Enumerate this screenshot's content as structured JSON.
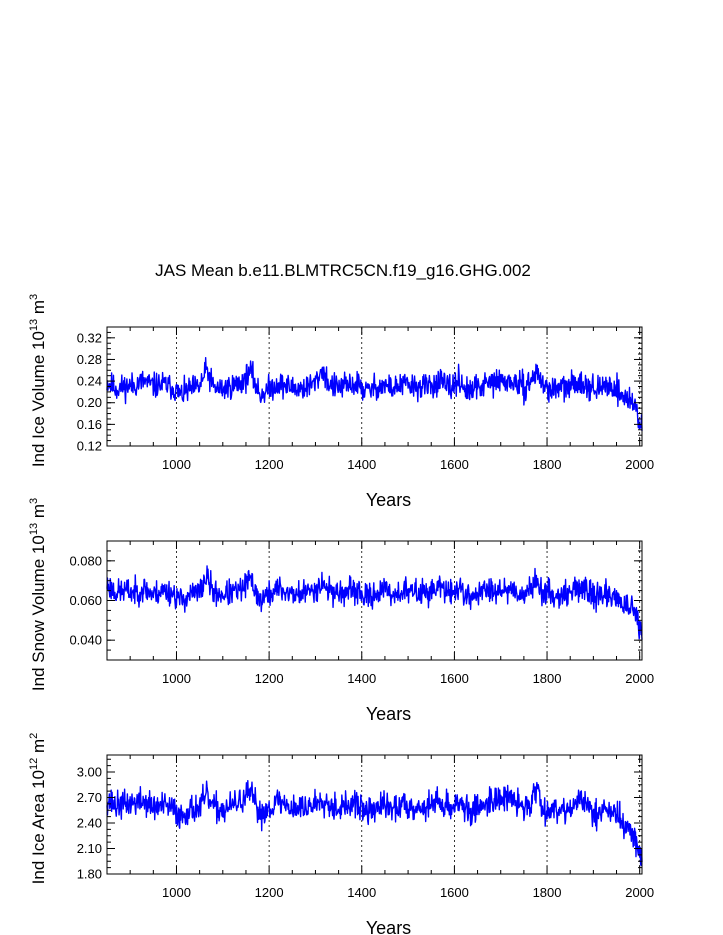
{
  "figure": {
    "title": "JAS Mean b.e11.BLMTRC5CN.f19_g16.GHG.002"
  },
  "chart_data": [
    {
      "type": "line",
      "ylabel": {
        "main": "Ind Ice Volume 10",
        "exp": "13",
        "unit": " m",
        "unit_exp": "3"
      },
      "xlabel": "Years",
      "xlim": [
        850,
        2005
      ],
      "ylim": [
        0.12,
        0.34
      ],
      "xticks": [
        1000,
        1200,
        1400,
        1600,
        1800,
        2000
      ],
      "yticks": [
        0.12,
        0.16,
        0.2,
        0.24,
        0.28,
        0.32
      ],
      "ytick_labels": [
        "0.12",
        "0.16",
        "0.20",
        "0.24",
        "0.28",
        "0.32"
      ],
      "color": "#0000ff",
      "series": {
        "name": "Ind Ice Volume",
        "x": [
          850,
          870,
          890,
          910,
          930,
          950,
          970,
          990,
          1010,
          1030,
          1050,
          1065,
          1080,
          1100,
          1120,
          1140,
          1160,
          1180,
          1200,
          1220,
          1240,
          1260,
          1280,
          1300,
          1315,
          1330,
          1350,
          1370,
          1390,
          1410,
          1430,
          1450,
          1470,
          1490,
          1510,
          1530,
          1550,
          1570,
          1590,
          1610,
          1630,
          1650,
          1670,
          1690,
          1710,
          1730,
          1750,
          1770,
          1780,
          1790,
          1810,
          1830,
          1850,
          1870,
          1890,
          1910,
          1930,
          1950,
          1960,
          1970,
          1980,
          1990,
          2000,
          2005
        ],
        "values": [
          0.238,
          0.226,
          0.23,
          0.233,
          0.24,
          0.231,
          0.234,
          0.229,
          0.214,
          0.225,
          0.229,
          0.262,
          0.228,
          0.225,
          0.231,
          0.236,
          0.258,
          0.214,
          0.226,
          0.235,
          0.23,
          0.226,
          0.228,
          0.237,
          0.262,
          0.233,
          0.228,
          0.232,
          0.235,
          0.221,
          0.229,
          0.232,
          0.226,
          0.235,
          0.23,
          0.229,
          0.232,
          0.239,
          0.225,
          0.243,
          0.218,
          0.229,
          0.234,
          0.24,
          0.239,
          0.237,
          0.227,
          0.245,
          0.26,
          0.231,
          0.225,
          0.227,
          0.229,
          0.242,
          0.232,
          0.222,
          0.232,
          0.227,
          0.214,
          0.209,
          0.205,
          0.193,
          0.166,
          0.155
        ],
        "noise": 0.02,
        "seed": 11
      }
    },
    {
      "type": "line",
      "ylabel": {
        "main": "Ind Snow Volume 10",
        "exp": "13",
        "unit": " m",
        "unit_exp": "3"
      },
      "xlabel": "Years",
      "xlim": [
        850,
        2005
      ],
      "ylim": [
        0.03,
        0.09
      ],
      "xticks": [
        1000,
        1200,
        1400,
        1600,
        1800,
        2000
      ],
      "yticks": [
        0.04,
        0.06,
        0.08
      ],
      "ytick_labels": [
        "0.040",
        "0.060",
        "0.080"
      ],
      "color": "#0000ff",
      "series": {
        "name": "Ind Snow Volume",
        "x": [
          850,
          870,
          890,
          910,
          930,
          950,
          970,
          990,
          1010,
          1030,
          1050,
          1065,
          1080,
          1100,
          1120,
          1140,
          1160,
          1180,
          1200,
          1220,
          1240,
          1260,
          1280,
          1300,
          1315,
          1330,
          1350,
          1370,
          1390,
          1410,
          1430,
          1450,
          1470,
          1490,
          1510,
          1530,
          1550,
          1570,
          1590,
          1610,
          1630,
          1650,
          1670,
          1690,
          1710,
          1730,
          1750,
          1770,
          1780,
          1790,
          1810,
          1830,
          1850,
          1870,
          1890,
          1910,
          1930,
          1950,
          1960,
          1970,
          1980,
          1990,
          2000,
          2005
        ],
        "values": [
          0.068,
          0.064,
          0.065,
          0.064,
          0.066,
          0.063,
          0.065,
          0.064,
          0.06,
          0.063,
          0.064,
          0.072,
          0.064,
          0.063,
          0.064,
          0.065,
          0.071,
          0.06,
          0.063,
          0.066,
          0.064,
          0.063,
          0.064,
          0.066,
          0.069,
          0.065,
          0.064,
          0.064,
          0.065,
          0.061,
          0.064,
          0.065,
          0.063,
          0.065,
          0.064,
          0.064,
          0.065,
          0.067,
          0.063,
          0.067,
          0.061,
          0.064,
          0.065,
          0.066,
          0.066,
          0.065,
          0.063,
          0.067,
          0.071,
          0.064,
          0.063,
          0.063,
          0.064,
          0.067,
          0.064,
          0.062,
          0.063,
          0.062,
          0.059,
          0.057,
          0.056,
          0.053,
          0.046,
          0.042
        ],
        "noise": 0.0055,
        "seed": 23
      }
    },
    {
      "type": "line",
      "ylabel": {
        "main": "Ind Ice Area 10",
        "exp": "12",
        "unit": " m",
        "unit_exp": "2"
      },
      "xlabel": "Years",
      "xlim": [
        850,
        2005
      ],
      "ylim": [
        1.8,
        3.2
      ],
      "xticks": [
        1000,
        1200,
        1400,
        1600,
        1800,
        2000
      ],
      "yticks": [
        1.8,
        2.1,
        2.4,
        2.7,
        3.0
      ],
      "ytick_labels": [
        "1.80",
        "2.10",
        "2.40",
        "2.70",
        "3.00"
      ],
      "color": "#0000ff",
      "series": {
        "name": "Ind Ice Area",
        "x": [
          850,
          870,
          890,
          910,
          930,
          950,
          970,
          990,
          1010,
          1030,
          1050,
          1065,
          1080,
          1100,
          1120,
          1140,
          1160,
          1180,
          1200,
          1220,
          1240,
          1260,
          1280,
          1300,
          1315,
          1330,
          1350,
          1370,
          1390,
          1410,
          1430,
          1450,
          1470,
          1490,
          1510,
          1530,
          1550,
          1570,
          1590,
          1610,
          1630,
          1650,
          1670,
          1690,
          1710,
          1730,
          1750,
          1770,
          1780,
          1790,
          1810,
          1830,
          1850,
          1870,
          1890,
          1910,
          1930,
          1950,
          1960,
          1970,
          1980,
          1990,
          2000,
          2005
        ],
        "values": [
          2.68,
          2.6,
          2.62,
          2.64,
          2.66,
          2.58,
          2.6,
          2.57,
          2.48,
          2.56,
          2.58,
          2.72,
          2.58,
          2.55,
          2.6,
          2.66,
          2.75,
          2.5,
          2.58,
          2.66,
          2.6,
          2.57,
          2.58,
          2.63,
          2.7,
          2.62,
          2.58,
          2.6,
          2.62,
          2.52,
          2.58,
          2.6,
          2.56,
          2.62,
          2.6,
          2.57,
          2.62,
          2.66,
          2.56,
          2.68,
          2.5,
          2.58,
          2.64,
          2.7,
          2.69,
          2.66,
          2.57,
          2.7,
          2.82,
          2.58,
          2.55,
          2.57,
          2.58,
          2.66,
          2.58,
          2.52,
          2.56,
          2.5,
          2.42,
          2.35,
          2.3,
          2.22,
          2.02,
          1.95
        ],
        "noise": 0.14,
        "seed": 37
      }
    }
  ]
}
